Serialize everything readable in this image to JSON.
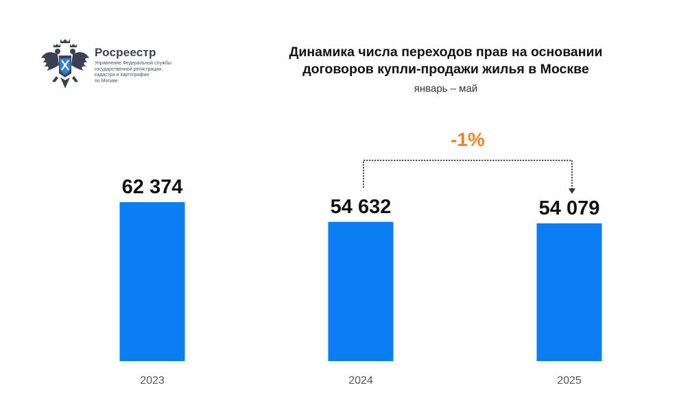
{
  "logo": {
    "icon": "double-headed-eagle-emblem-icon",
    "name": "Росреестр",
    "subtitle_lines": [
      "Управление Федеральной службы",
      "государственной регистрации,",
      "кадастра и картографии",
      "по Москве"
    ]
  },
  "header": {
    "title_line1": "Динамика числа переходов прав на основании",
    "title_line2": "договоров купли-продажи жилья в Москве",
    "subtitle": "январь – май"
  },
  "colors": {
    "bar": "#0a7ef5",
    "delta": "#f5821f",
    "text": "#111111",
    "tick": "#555555"
  },
  "chart_data": {
    "type": "bar",
    "categories": [
      "2023",
      "2024",
      "2025"
    ],
    "values": [
      62374,
      54632,
      54079
    ],
    "value_labels": [
      "62 374",
      "54 632",
      "54 079"
    ],
    "title": "Динамика числа переходов прав на основании договоров купли-продажи жилья в Москве",
    "subtitle": "январь – май",
    "xlabel": "",
    "ylabel": "",
    "ylim": [
      0,
      62374
    ],
    "grid": false,
    "annotation": {
      "text": "-1%",
      "from": "2024",
      "to": "2025",
      "style": "dotted-bracket-arrow"
    }
  }
}
